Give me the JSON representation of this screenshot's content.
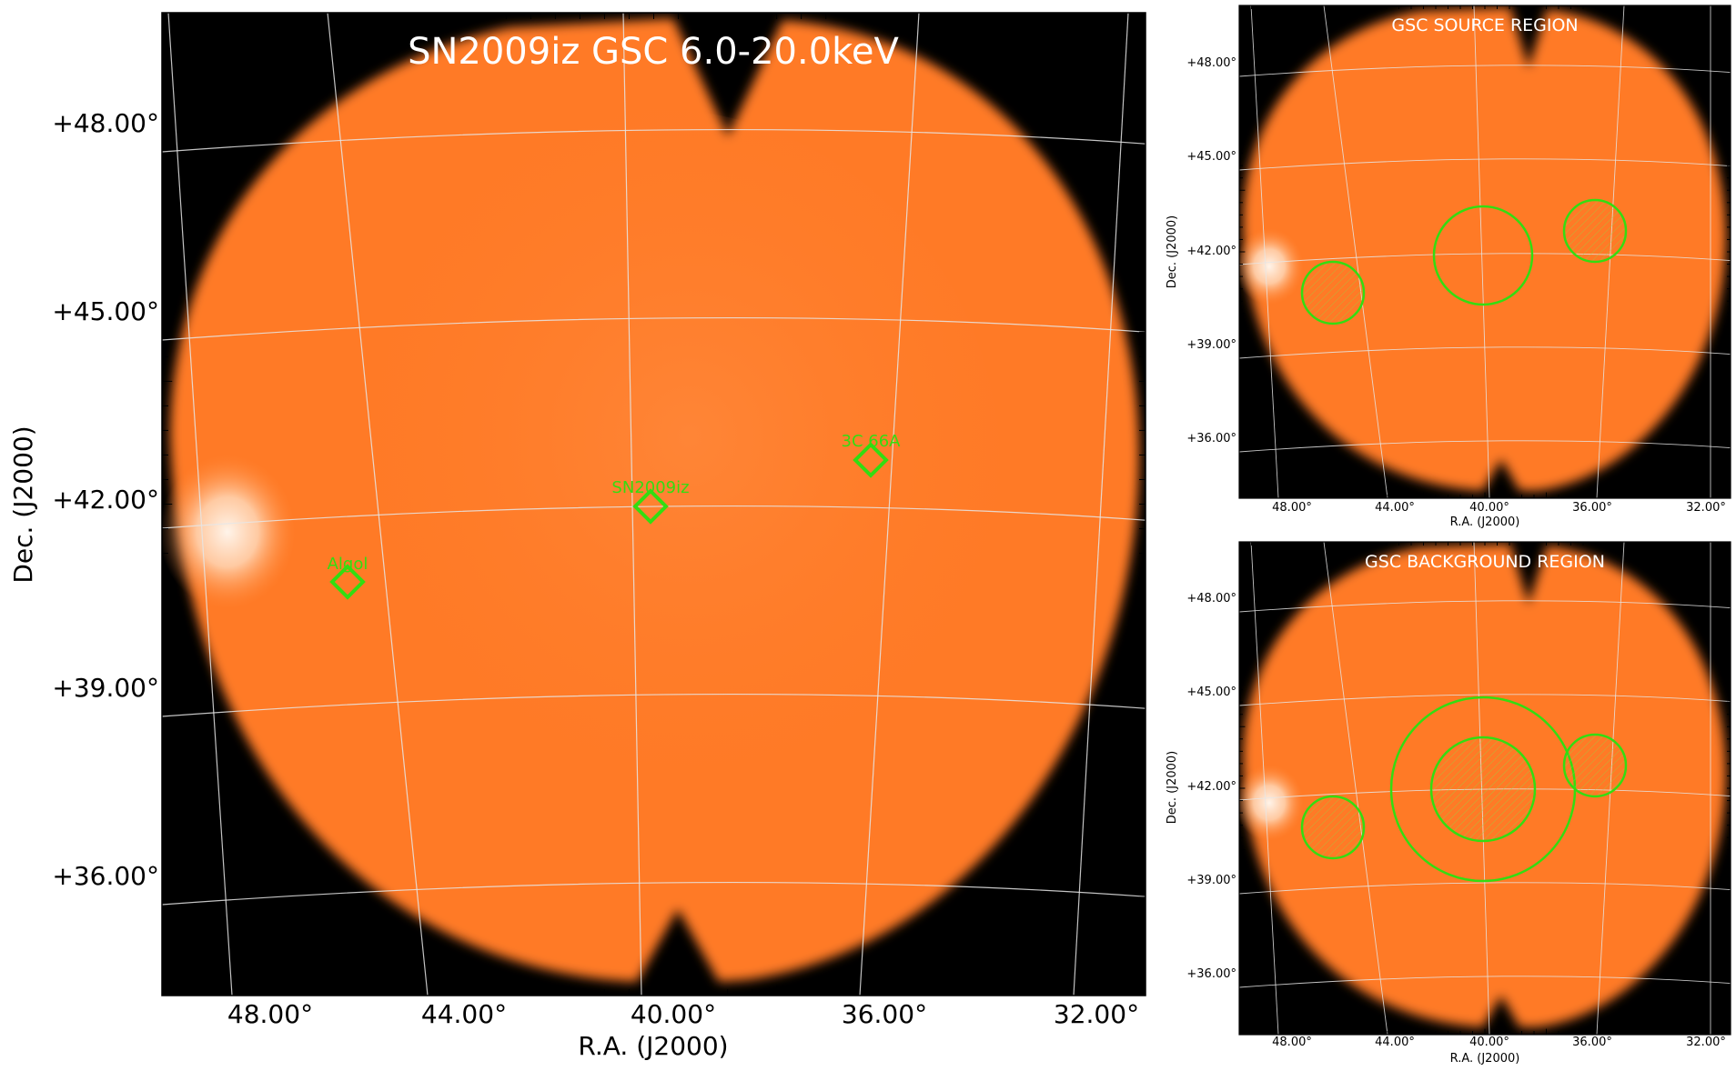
{
  "main_panel": {
    "title": "SN2009iz GSC 6.0-20.0keV",
    "xlabel": "R.A. (J2000)",
    "ylabel": "Dec. (J2000)",
    "ra_ticks": [
      "48.00°",
      "44.00°",
      "40.00°",
      "36.00°",
      "32.00°"
    ],
    "dec_ticks": [
      "+48.00°",
      "+45.00°",
      "+42.00°",
      "+39.00°",
      "+36.00°"
    ],
    "sources": [
      {
        "name": "Algol"
      },
      {
        "name": "SN2009iz"
      },
      {
        "name": "3C 66A"
      }
    ],
    "colors": {
      "image": "#ff7a26",
      "background": "#000000",
      "grid": "#dddddd",
      "marker": "#33dd11"
    }
  },
  "source_panel": {
    "title": "GSC SOURCE REGION",
    "xlabel": "R.A. (J2000)",
    "ylabel": "Dec. (J2000)",
    "ra_ticks": [
      "48.00°",
      "44.00°",
      "40.00°",
      "36.00°",
      "32.00°"
    ],
    "dec_ticks": [
      "+48.00°",
      "+45.00°",
      "+42.00°",
      "+39.00°",
      "+36.00°"
    ]
  },
  "background_panel": {
    "title": "GSC BACKGROUND REGION",
    "xlabel": "R.A. (J2000)",
    "ylabel": "Dec. (J2000)",
    "ra_ticks": [
      "48.00°",
      "44.00°",
      "40.00°",
      "36.00°",
      "32.00°"
    ],
    "dec_ticks": [
      "+48.00°",
      "+45.00°",
      "+42.00°",
      "+39.00°",
      "+36.00°"
    ]
  }
}
